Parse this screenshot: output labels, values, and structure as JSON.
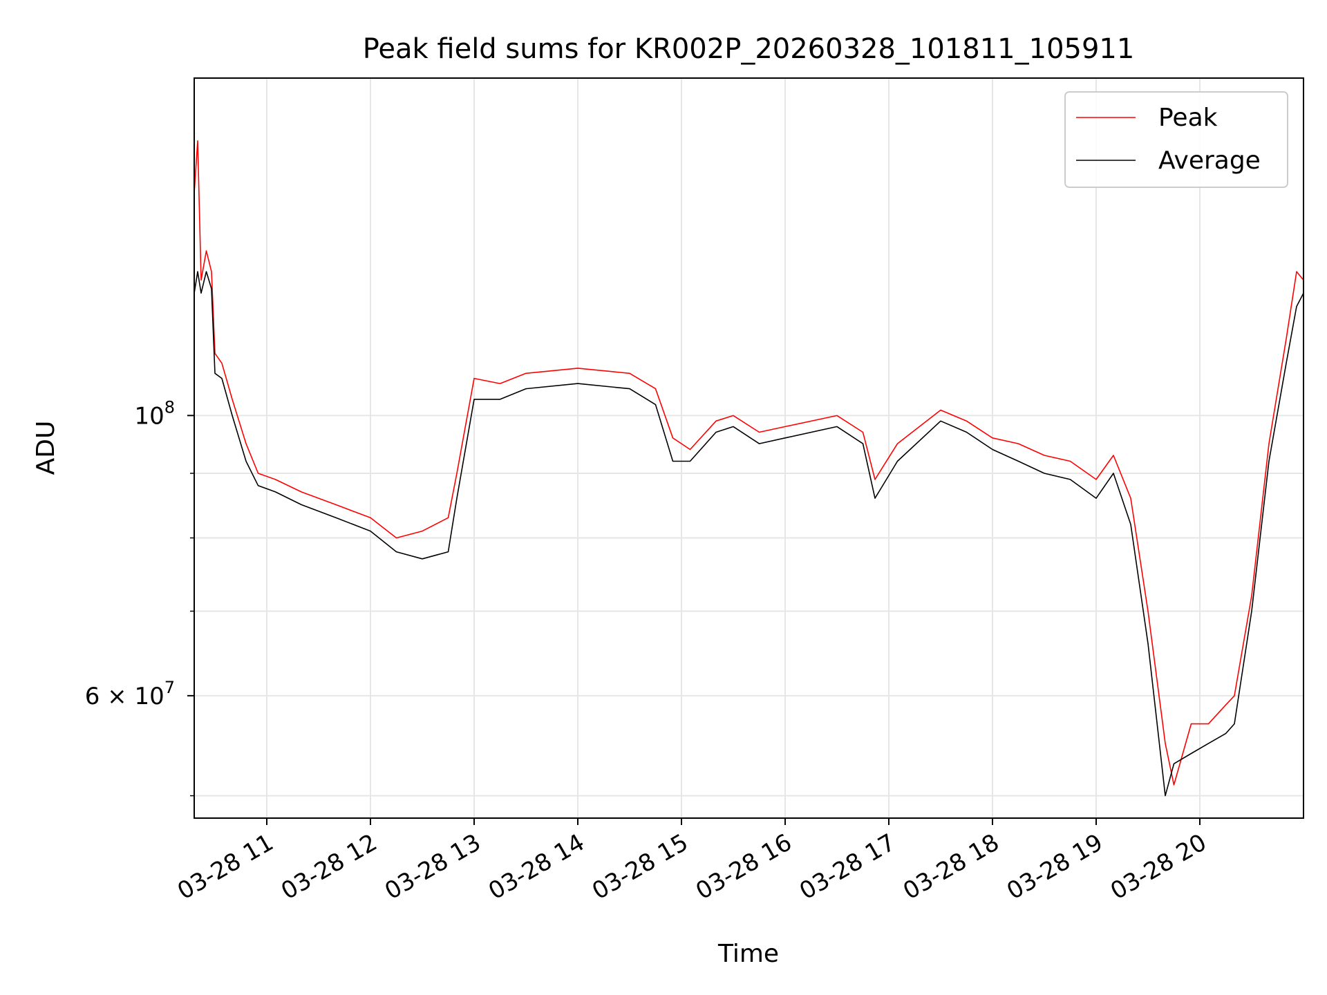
{
  "chart_data": {
    "type": "line",
    "title": "Peak field sums for KR002P_20260328_101811_105911",
    "xlabel": "Time",
    "ylabel": "ADU",
    "yscale": "log",
    "grid": true,
    "legend_position": "top-right",
    "xlim": [
      "2026-03-28 10:18",
      "2026-03-28 21:00"
    ],
    "ylim": [
      48000000,
      185000000
    ],
    "x_ticks": [
      {
        "x": "2026-03-28 11:00",
        "label": "03-28 11"
      },
      {
        "x": "2026-03-28 12:00",
        "label": "03-28 12"
      },
      {
        "x": "2026-03-28 13:00",
        "label": "03-28 13"
      },
      {
        "x": "2026-03-28 14:00",
        "label": "03-28 14"
      },
      {
        "x": "2026-03-28 15:00",
        "label": "03-28 15"
      },
      {
        "x": "2026-03-28 16:00",
        "label": "03-28 16"
      },
      {
        "x": "2026-03-28 17:00",
        "label": "03-28 17"
      },
      {
        "x": "2026-03-28 18:00",
        "label": "03-28 18"
      },
      {
        "x": "2026-03-28 19:00",
        "label": "03-28 19"
      },
      {
        "x": "2026-03-28 20:00",
        "label": "03-28 20"
      }
    ],
    "y_ticks": [
      {
        "y": 100000000,
        "base": "10",
        "exp": "8"
      },
      {
        "y": 60000000,
        "base": "6 × 10",
        "exp": "7"
      }
    ],
    "y_minor_ticks": [
      50000000,
      70000000,
      80000000,
      90000000
    ],
    "series": [
      {
        "name": "Peak",
        "color": "#ff0000",
        "x": [
          "2026-03-28 10:18",
          "2026-03-28 10:20",
          "2026-03-28 10:22",
          "2026-03-28 10:25",
          "2026-03-28 10:28",
          "2026-03-28 10:30",
          "2026-03-28 10:34",
          "2026-03-28 10:40",
          "2026-03-28 10:48",
          "2026-03-28 10:55",
          "2026-03-28 11:05",
          "2026-03-28 11:20",
          "2026-03-28 11:40",
          "2026-03-28 12:00",
          "2026-03-28 12:15",
          "2026-03-28 12:30",
          "2026-03-28 12:45",
          "2026-03-28 12:50",
          "2026-03-28 13:00",
          "2026-03-28 13:15",
          "2026-03-28 13:30",
          "2026-03-28 14:00",
          "2026-03-28 14:30",
          "2026-03-28 14:45",
          "2026-03-28 14:55",
          "2026-03-28 15:05",
          "2026-03-28 15:20",
          "2026-03-28 15:30",
          "2026-03-28 15:45",
          "2026-03-28 16:00",
          "2026-03-28 16:30",
          "2026-03-28 16:45",
          "2026-03-28 16:52",
          "2026-03-28 17:05",
          "2026-03-28 17:30",
          "2026-03-28 17:45",
          "2026-03-28 18:00",
          "2026-03-28 18:15",
          "2026-03-28 18:30",
          "2026-03-28 18:45",
          "2026-03-28 19:00",
          "2026-03-28 19:10",
          "2026-03-28 19:20",
          "2026-03-28 19:30",
          "2026-03-28 19:40",
          "2026-03-28 19:45",
          "2026-03-28 19:55",
          "2026-03-28 20:05",
          "2026-03-28 20:15",
          "2026-03-28 20:20",
          "2026-03-28 20:30",
          "2026-03-28 20:40",
          "2026-03-28 20:50",
          "2026-03-28 20:56",
          "2026-03-28 21:00"
        ],
        "y": [
          150000000,
          165000000,
          128000000,
          135000000,
          130000000,
          112000000,
          110000000,
          103000000,
          95000000,
          90000000,
          89000000,
          87000000,
          85000000,
          83000000,
          80000000,
          81000000,
          83000000,
          90000000,
          107000000,
          106000000,
          108000000,
          109000000,
          108000000,
          105000000,
          96000000,
          94000000,
          99000000,
          100000000,
          97000000,
          98000000,
          100000000,
          97000000,
          89000000,
          95000000,
          101000000,
          99000000,
          96000000,
          95000000,
          93000000,
          92000000,
          89000000,
          93000000,
          86000000,
          70000000,
          55000000,
          51000000,
          57000000,
          57000000,
          59000000,
          60000000,
          72000000,
          95000000,
          115000000,
          130000000,
          128000000
        ]
      },
      {
        "name": "Average",
        "color": "#000000",
        "x": [
          "2026-03-28 10:18",
          "2026-03-28 10:20",
          "2026-03-28 10:22",
          "2026-03-28 10:25",
          "2026-03-28 10:28",
          "2026-03-28 10:30",
          "2026-03-28 10:34",
          "2026-03-28 10:40",
          "2026-03-28 10:48",
          "2026-03-28 10:55",
          "2026-03-28 11:05",
          "2026-03-28 11:20",
          "2026-03-28 11:40",
          "2026-03-28 12:00",
          "2026-03-28 12:15",
          "2026-03-28 12:30",
          "2026-03-28 12:45",
          "2026-03-28 12:50",
          "2026-03-28 13:00",
          "2026-03-28 13:15",
          "2026-03-28 13:30",
          "2026-03-28 14:00",
          "2026-03-28 14:30",
          "2026-03-28 14:45",
          "2026-03-28 14:55",
          "2026-03-28 15:05",
          "2026-03-28 15:20",
          "2026-03-28 15:30",
          "2026-03-28 15:45",
          "2026-03-28 16:00",
          "2026-03-28 16:30",
          "2026-03-28 16:45",
          "2026-03-28 16:52",
          "2026-03-28 17:05",
          "2026-03-28 17:30",
          "2026-03-28 17:45",
          "2026-03-28 18:00",
          "2026-03-28 18:15",
          "2026-03-28 18:30",
          "2026-03-28 18:45",
          "2026-03-28 19:00",
          "2026-03-28 19:10",
          "2026-03-28 19:20",
          "2026-03-28 19:30",
          "2026-03-28 19:40",
          "2026-03-28 19:45",
          "2026-03-28 19:55",
          "2026-03-28 20:05",
          "2026-03-28 20:15",
          "2026-03-28 20:20",
          "2026-03-28 20:30",
          "2026-03-28 20:40",
          "2026-03-28 20:50",
          "2026-03-28 20:56",
          "2026-03-28 21:00"
        ],
        "y": [
          125000000,
          130000000,
          125000000,
          130000000,
          126000000,
          108000000,
          107000000,
          100000000,
          92000000,
          88000000,
          87000000,
          85000000,
          83000000,
          81000000,
          78000000,
          77000000,
          78000000,
          86000000,
          103000000,
          103000000,
          105000000,
          106000000,
          105000000,
          102000000,
          92000000,
          92000000,
          97000000,
          98000000,
          95000000,
          96000000,
          98000000,
          95000000,
          86000000,
          92000000,
          99000000,
          97000000,
          94000000,
          92000000,
          90000000,
          89000000,
          86000000,
          90000000,
          82000000,
          66000000,
          50000000,
          53000000,
          54000000,
          55000000,
          56000000,
          57000000,
          70000000,
          92000000,
          110000000,
          122000000,
          125000000
        ]
      }
    ]
  }
}
